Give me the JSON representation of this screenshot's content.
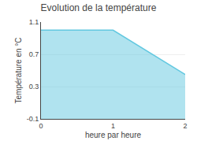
{
  "chart_data": {
    "type": "area",
    "title": "Evolution de la température",
    "xlabel": "heure par heure",
    "ylabel": "Température en °C",
    "x": [
      0,
      1,
      2
    ],
    "values": [
      1.0,
      1.0,
      0.45
    ],
    "color": "#62c8e0",
    "xlim": [
      0,
      2
    ],
    "ylim": [
      -0.1,
      1.1
    ],
    "xticks": [
      0,
      1,
      2
    ],
    "yticks": [
      -0.1,
      0.3,
      0.7,
      1.1
    ],
    "grid": true
  }
}
